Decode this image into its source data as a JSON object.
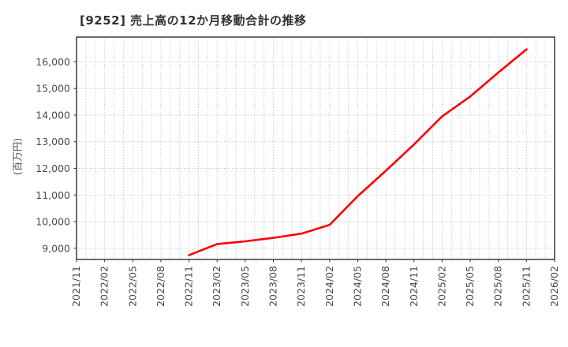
{
  "page": {
    "background": "#ffffff"
  },
  "chart_data": {
    "type": "line",
    "title": "[9252]  売上高の12か月移動合計の推移",
    "ylabel": "(百万円)",
    "xlabel": "",
    "legend_position": "none",
    "grid": true,
    "x_tick_labels": [
      "2021/11",
      "2022/02",
      "2022/05",
      "2022/08",
      "2022/11",
      "2023/02",
      "2023/05",
      "2023/08",
      "2023/11",
      "2024/02",
      "2024/05",
      "2024/08",
      "2024/11",
      "2025/02",
      "2025/05",
      "2025/08",
      "2025/11",
      "2026/02"
    ],
    "y_ticks": [
      9000,
      10000,
      11000,
      12000,
      13000,
      14000,
      15000,
      16000
    ],
    "y_tick_labels": [
      "9,000",
      "10,000",
      "11,000",
      "12,000",
      "13,000",
      "14,000",
      "15,000",
      "16,000"
    ],
    "ylim": [
      8580,
      16930
    ],
    "colors": {
      "line": "#ff0000",
      "grid": "#b2b2b2",
      "axis": "#3a3a3a",
      "tick_text": "#4a4a4a",
      "title_text": "#333333",
      "background": "#ffffff"
    },
    "series": [
      {
        "color": "#ff0000",
        "points": [
          {
            "x": "2022/11",
            "y": 8740
          },
          {
            "x": "2023/02",
            "y": 9160
          },
          {
            "x": "2023/05",
            "y": 9260
          },
          {
            "x": "2023/08",
            "y": 9390
          },
          {
            "x": "2023/11",
            "y": 9550
          },
          {
            "x": "2024/02",
            "y": 9880
          },
          {
            "x": "2024/05",
            "y": 10960
          },
          {
            "x": "2024/08",
            "y": 11910
          },
          {
            "x": "2024/11",
            "y": 12900
          },
          {
            "x": "2025/02",
            "y": 13950
          },
          {
            "x": "2025/05",
            "y": 14700
          },
          {
            "x": "2025/08",
            "y": 15600
          },
          {
            "x": "2025/11",
            "y": 16470
          }
        ]
      }
    ]
  }
}
